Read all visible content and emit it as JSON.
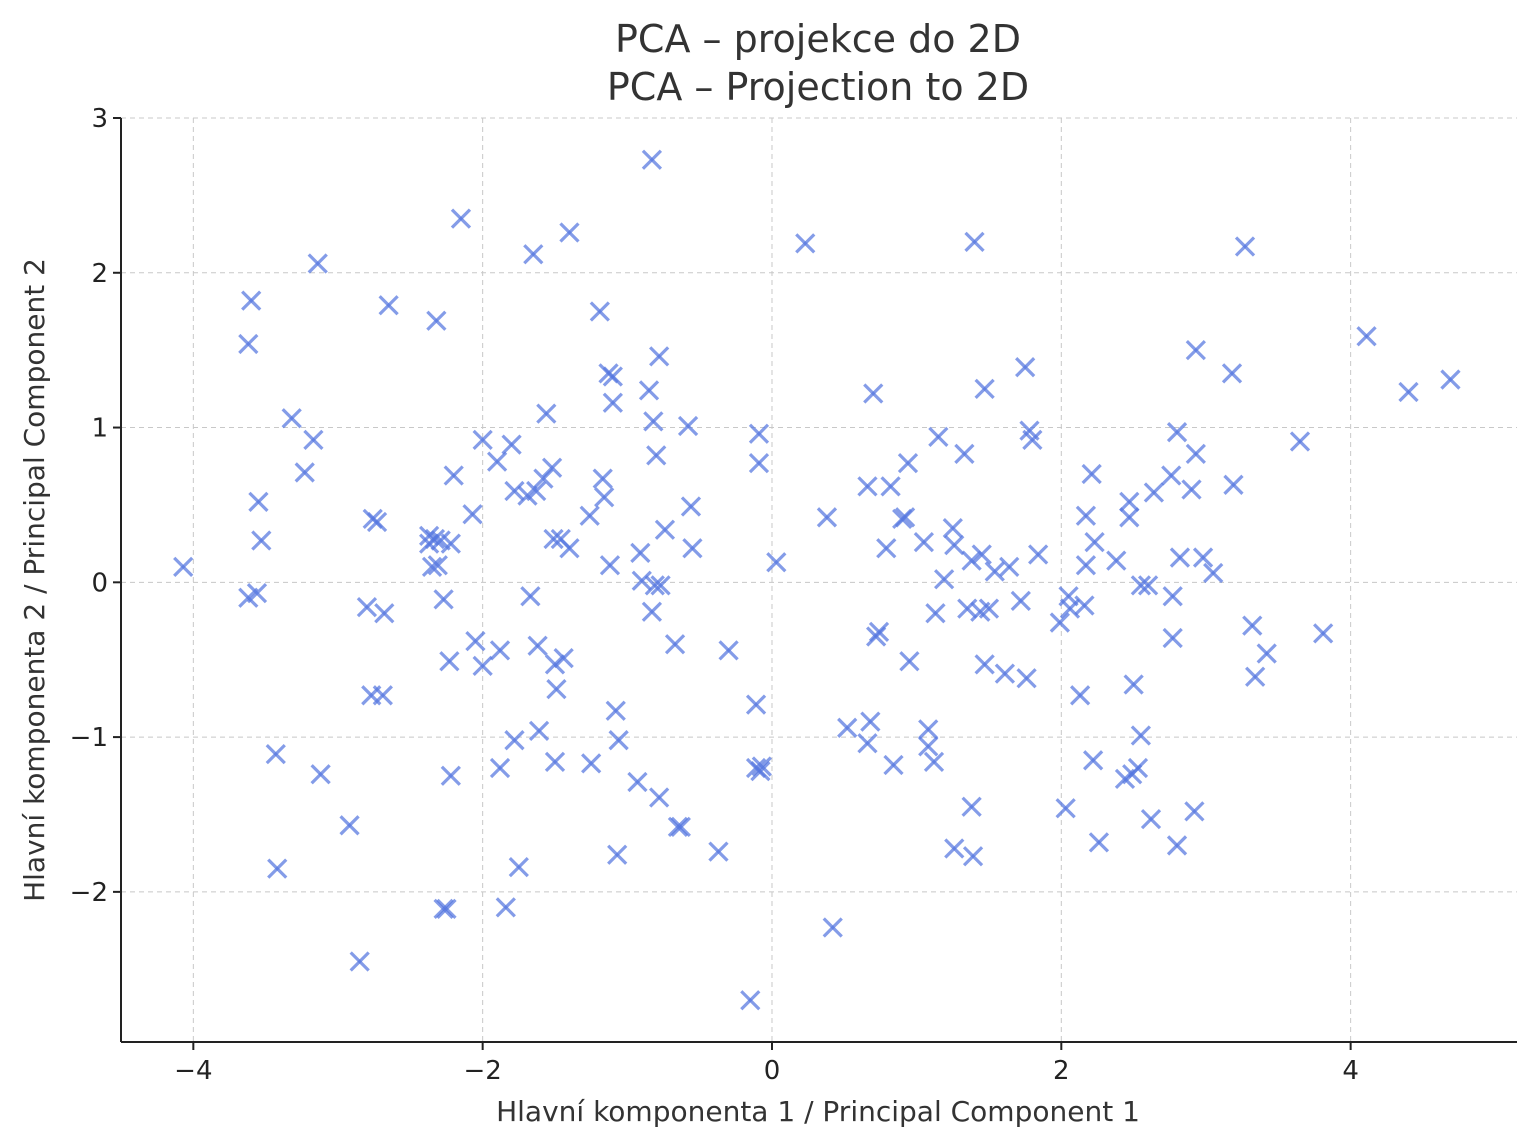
{
  "chart_data": {
    "type": "scatter",
    "title_line1": "PCA – projekce do 2D",
    "title_line2": "PCA – Projection to 2D",
    "xlabel": "Hlavní komponenta 1 / Principal Component 1",
    "ylabel": "Hlavní komponenta 2 / Principal Component 2",
    "xlim": [
      -4.5,
      5.15
    ],
    "ylim": [
      -2.97,
      3.0
    ],
    "xticks": [
      -4,
      -2,
      0,
      2,
      4
    ],
    "xtick_labels": [
      "−4",
      "−2",
      "0",
      "2",
      "4"
    ],
    "yticks": [
      -2,
      -1,
      0,
      1,
      2,
      3
    ],
    "ytick_labels": [
      "−2",
      "−1",
      "0",
      "1",
      "2",
      "3"
    ],
    "grid": true,
    "marker": "x",
    "color": "#5577e0",
    "points": [
      [
        -4.07,
        0.1
      ],
      [
        -3.6,
        1.82
      ],
      [
        -3.62,
        1.54
      ],
      [
        -3.55,
        0.52
      ],
      [
        -3.53,
        0.27
      ],
      [
        -3.62,
        -0.1
      ],
      [
        -3.56,
        -0.07
      ],
      [
        -3.43,
        -1.11
      ],
      [
        -3.42,
        -1.85
      ],
      [
        -3.32,
        1.06
      ],
      [
        -3.23,
        0.71
      ],
      [
        -3.17,
        0.92
      ],
      [
        -3.14,
        2.06
      ],
      [
        -3.12,
        -1.24
      ],
      [
        -2.92,
        -1.57
      ],
      [
        -2.85,
        -2.45
      ],
      [
        -2.8,
        -0.16
      ],
      [
        -2.76,
        0.41
      ],
      [
        -2.77,
        -0.73
      ],
      [
        -2.73,
        0.39
      ],
      [
        -2.69,
        -0.73
      ],
      [
        -2.68,
        -0.2
      ],
      [
        -2.65,
        1.79
      ],
      [
        -2.37,
        0.3
      ],
      [
        -2.37,
        0.25
      ],
      [
        -2.35,
        0.1
      ],
      [
        -2.33,
        0.28
      ],
      [
        -2.32,
        1.69
      ],
      [
        -2.31,
        0.11
      ],
      [
        -2.29,
        0.27
      ],
      [
        -2.27,
        -0.11
      ],
      [
        -2.27,
        -2.11
      ],
      [
        -2.25,
        -2.11
      ],
      [
        -2.22,
        0.25
      ],
      [
        -2.23,
        -0.51
      ],
      [
        -2.22,
        -1.25
      ],
      [
        -2.2,
        0.69
      ],
      [
        -2.15,
        2.35
      ],
      [
        -2.07,
        0.44
      ],
      [
        -2.05,
        -0.38
      ],
      [
        -2.0,
        0.92
      ],
      [
        -2.0,
        -0.54
      ],
      [
        -1.9,
        0.78
      ],
      [
        -1.88,
        -0.44
      ],
      [
        -1.88,
        -1.2
      ],
      [
        -1.84,
        -2.1
      ],
      [
        -1.8,
        0.89
      ],
      [
        -1.78,
        0.59
      ],
      [
        -1.78,
        -1.02
      ],
      [
        -1.75,
        -1.84
      ],
      [
        -1.69,
        0.56
      ],
      [
        -1.67,
        -0.09
      ],
      [
        -1.65,
        2.12
      ],
      [
        -1.63,
        0.59
      ],
      [
        -1.62,
        -0.41
      ],
      [
        -1.61,
        -0.96
      ],
      [
        -1.58,
        0.67
      ],
      [
        -1.56,
        1.09
      ],
      [
        -1.52,
        0.74
      ],
      [
        -1.51,
        0.28
      ],
      [
        -1.5,
        -0.53
      ],
      [
        -1.5,
        -1.16
      ],
      [
        -1.49,
        -0.69
      ],
      [
        -1.46,
        0.28
      ],
      [
        -1.44,
        -0.49
      ],
      [
        -1.4,
        2.26
      ],
      [
        -1.4,
        0.22
      ],
      [
        -1.26,
        0.43
      ],
      [
        -1.25,
        -1.17
      ],
      [
        -1.19,
        1.75
      ],
      [
        -1.17,
        0.67
      ],
      [
        -1.16,
        0.55
      ],
      [
        -1.13,
        1.35
      ],
      [
        -1.12,
        0.11
      ],
      [
        -1.1,
        1.33
      ],
      [
        -1.1,
        1.16
      ],
      [
        -1.08,
        -0.83
      ],
      [
        -1.07,
        -1.76
      ],
      [
        -1.06,
        -1.02
      ],
      [
        -0.93,
        -1.29
      ],
      [
        -0.91,
        0.19
      ],
      [
        -0.9,
        0.01
      ],
      [
        -0.85,
        1.24
      ],
      [
        -0.83,
        2.73
      ],
      [
        -0.83,
        -0.19
      ],
      [
        -0.82,
        1.04
      ],
      [
        -0.81,
        -0.02
      ],
      [
        -0.8,
        0.82
      ],
      [
        -0.78,
        1.46
      ],
      [
        -0.77,
        -0.02
      ],
      [
        -0.78,
        -1.39
      ],
      [
        -0.74,
        0.34
      ],
      [
        -0.67,
        -0.4
      ],
      [
        -0.65,
        -1.58
      ],
      [
        -0.63,
        -1.58
      ],
      [
        -0.58,
        1.01
      ],
      [
        -0.56,
        0.49
      ],
      [
        -0.55,
        0.22
      ],
      [
        -0.37,
        -1.74
      ],
      [
        -0.3,
        -0.44
      ],
      [
        -0.11,
        -0.79
      ],
      [
        -0.11,
        -1.2
      ],
      [
        -0.09,
        0.96
      ],
      [
        -0.09,
        0.77
      ],
      [
        -0.08,
        -1.22
      ],
      [
        -0.07,
        -1.19
      ],
      [
        -0.15,
        -2.7
      ],
      [
        0.03,
        0.13
      ],
      [
        0.23,
        2.19
      ],
      [
        0.38,
        0.42
      ],
      [
        0.42,
        -2.23
      ],
      [
        0.52,
        -0.94
      ],
      [
        0.66,
        0.62
      ],
      [
        0.66,
        -1.04
      ],
      [
        0.68,
        -0.9
      ],
      [
        0.7,
        1.22
      ],
      [
        0.72,
        -0.35
      ],
      [
        0.74,
        -0.32
      ],
      [
        0.79,
        0.22
      ],
      [
        0.82,
        0.62
      ],
      [
        0.84,
        -1.18
      ],
      [
        0.9,
        0.41
      ],
      [
        0.92,
        0.42
      ],
      [
        0.94,
        0.77
      ],
      [
        0.95,
        -0.51
      ],
      [
        1.05,
        0.26
      ],
      [
        1.08,
        -0.95
      ],
      [
        1.08,
        -1.06
      ],
      [
        1.12,
        -1.16
      ],
      [
        1.13,
        -0.2
      ],
      [
        1.15,
        0.94
      ],
      [
        1.19,
        0.02
      ],
      [
        1.25,
        0.35
      ],
      [
        1.26,
        0.24
      ],
      [
        1.26,
        -1.72
      ],
      [
        1.33,
        0.83
      ],
      [
        1.35,
        -0.17
      ],
      [
        1.38,
        0.14
      ],
      [
        1.38,
        -1.45
      ],
      [
        1.39,
        -1.77
      ],
      [
        1.4,
        2.2
      ],
      [
        1.44,
        -0.19
      ],
      [
        1.45,
        0.18
      ],
      [
        1.47,
        1.25
      ],
      [
        1.47,
        -0.53
      ],
      [
        1.5,
        -0.17
      ],
      [
        1.54,
        0.07
      ],
      [
        1.61,
        -0.59
      ],
      [
        1.64,
        0.1
      ],
      [
        1.72,
        -0.12
      ],
      [
        1.75,
        1.39
      ],
      [
        1.76,
        -0.62
      ],
      [
        1.78,
        0.98
      ],
      [
        1.8,
        0.92
      ],
      [
        1.84,
        0.18
      ],
      [
        1.99,
        -0.26
      ],
      [
        2.03,
        -1.46
      ],
      [
        2.05,
        -0.09
      ],
      [
        2.06,
        -0.17
      ],
      [
        2.13,
        -0.73
      ],
      [
        2.16,
        -0.15
      ],
      [
        2.17,
        0.11
      ],
      [
        2.17,
        0.43
      ],
      [
        2.21,
        0.7
      ],
      [
        2.23,
        0.26
      ],
      [
        2.22,
        -1.15
      ],
      [
        2.26,
        -1.68
      ],
      [
        2.38,
        0.14
      ],
      [
        2.44,
        -1.27
      ],
      [
        2.47,
        0.52
      ],
      [
        2.47,
        0.42
      ],
      [
        2.49,
        -1.24
      ],
      [
        2.5,
        -0.66
      ],
      [
        2.53,
        -1.2
      ],
      [
        2.55,
        -0.02
      ],
      [
        2.55,
        -0.99
      ],
      [
        2.6,
        -0.02
      ],
      [
        2.62,
        -1.53
      ],
      [
        2.64,
        0.58
      ],
      [
        2.76,
        0.69
      ],
      [
        2.77,
        -0.09
      ],
      [
        2.77,
        -0.36
      ],
      [
        2.8,
        0.97
      ],
      [
        2.82,
        0.16
      ],
      [
        2.8,
        -1.7
      ],
      [
        2.9,
        0.6
      ],
      [
        2.92,
        -1.48
      ],
      [
        2.93,
        1.5
      ],
      [
        2.93,
        0.83
      ],
      [
        2.98,
        0.16
      ],
      [
        3.05,
        0.06
      ],
      [
        3.18,
        1.35
      ],
      [
        3.19,
        0.63
      ],
      [
        3.27,
        2.17
      ],
      [
        3.32,
        -0.28
      ],
      [
        3.34,
        -0.61
      ],
      [
        3.42,
        -0.46
      ],
      [
        3.65,
        0.91
      ],
      [
        3.81,
        -0.33
      ],
      [
        4.11,
        1.59
      ],
      [
        4.4,
        1.23
      ],
      [
        4.69,
        1.31
      ]
    ]
  }
}
